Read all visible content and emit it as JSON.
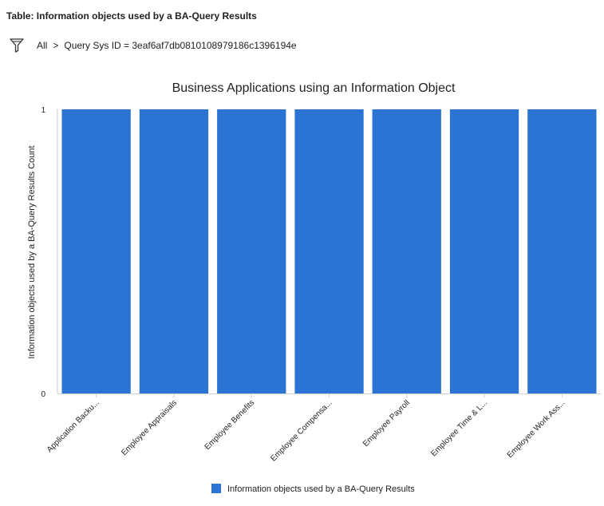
{
  "page": {
    "table_title": "Table: Information objects used by a BA-Query Results"
  },
  "breadcrumb": {
    "all_label": "All",
    "separator": ">",
    "condition": "Query Sys ID = 3eaf6af7db0810108979186c1396194e"
  },
  "colors": {
    "bar": "#2b74d4",
    "axis": "#cfcfcf",
    "text": "#222222"
  },
  "icons": {
    "filter": "filter-icon",
    "legend": "legend-swatch"
  },
  "chart_data": {
    "type": "bar",
    "title": "Business Applications using an Information Object",
    "xlabel": "",
    "ylabel": "Information objects used by a BA-Query Results Count",
    "categories": [
      "Application Backu...",
      "Employee Appraisals",
      "Employee Benefits",
      "Employee Compensa...",
      "Employee Payroll",
      "Employee Time & L...",
      "Employee Work Ass..."
    ],
    "series": [
      {
        "name": "Information objects used by a BA-Query Results",
        "values": [
          1,
          1,
          1,
          1,
          1,
          1,
          1
        ]
      }
    ],
    "ylim": [
      0,
      1
    ],
    "yticks": [
      0,
      1
    ],
    "grid": false,
    "legend_position": "bottom-center"
  }
}
